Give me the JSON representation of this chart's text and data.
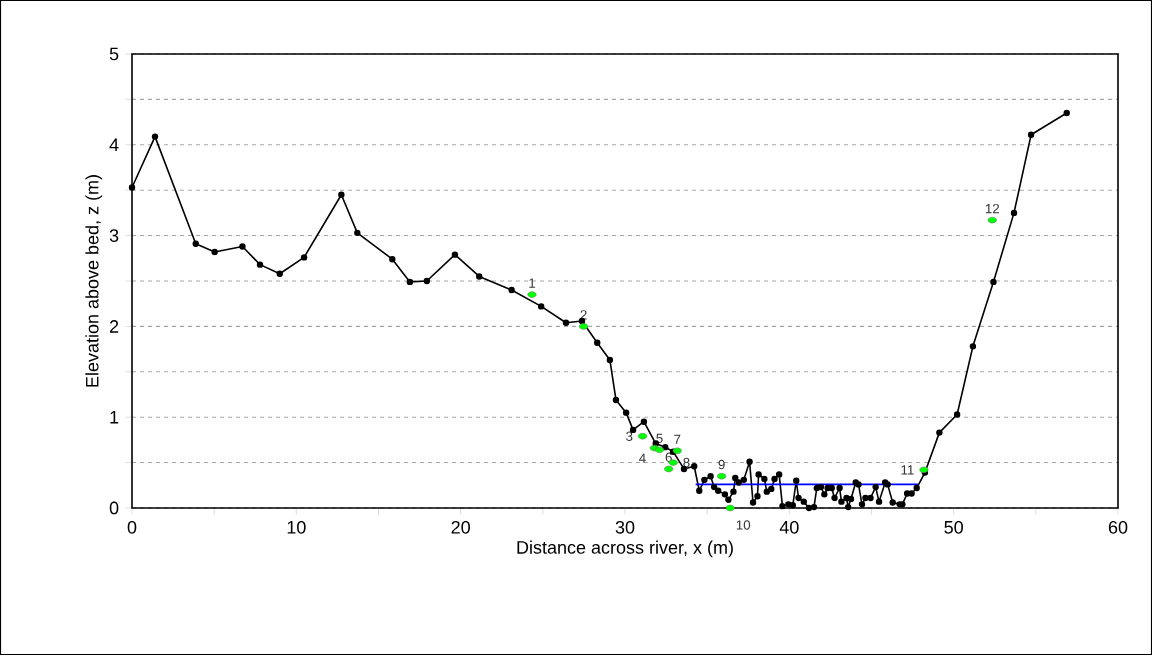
{
  "chart_data": {
    "type": "line",
    "xlabel": "Distance across river, x (m)",
    "ylabel": "Elevation above bed, z (m)",
    "xlim": [
      0,
      60
    ],
    "ylim": [
      0,
      5
    ],
    "xticks": [
      0,
      {
        "value": 5,
        "label": null
      },
      10,
      {
        "value": 15,
        "label": null
      },
      20,
      {
        "value": 25,
        "label": null
      },
      30,
      {
        "value": 35,
        "label": null
      },
      40,
      {
        "value": 45,
        "label": null
      },
      50,
      {
        "value": 55,
        "label": null
      },
      60
    ],
    "yticks": [
      0,
      {
        "value": 0.5,
        "label": null
      },
      1,
      {
        "value": 1.5,
        "label": null
      },
      2,
      {
        "value": 2.5,
        "label": null
      },
      3,
      {
        "value": 3.5,
        "label": null
      },
      4,
      {
        "value": 4.5,
        "label": null
      },
      5
    ],
    "grid": "y",
    "series": [
      {
        "color": "#000000",
        "marker": "circle",
        "x": [
          0,
          1.4,
          3.88,
          5.03,
          6.72,
          7.79,
          8.99,
          10.47,
          12.74,
          13.71,
          15.84,
          16.91,
          17.94,
          19.65,
          21.13,
          23.1,
          24.9,
          26.41,
          27.38,
          28.31,
          29.08,
          29.45,
          30.07,
          30.49,
          31.15,
          31.87,
          32.45,
          32.93,
          33.59,
          34.21,
          34.52,
          34.83,
          35.21,
          35.42,
          35.67,
          36.08,
          36.29,
          36.6,
          36.71,
          36.92,
          37.23,
          37.58,
          37.79,
          38.06,
          38.13,
          38.48,
          38.63,
          38.9,
          39.1,
          39.38,
          39.58,
          39.94,
          40.21,
          40.42,
          40.56,
          40.88,
          41.19,
          41.5,
          41.67,
          41.92,
          42.13,
          42.33,
          42.58,
          42.75,
          43.06,
          43.17,
          43.48,
          43.58,
          43.75,
          44.04,
          44.21,
          44.42,
          44.63,
          44.94,
          45.25,
          45.46,
          45.83,
          45.98,
          46.29,
          46.71,
          46.88,
          47.17,
          47.44,
          47.75,
          48.25,
          49.13,
          50.21,
          51.17,
          52.42,
          53.67,
          54.71,
          56.88
        ],
        "values": [
          3.53,
          4.09,
          2.91,
          2.82,
          2.88,
          2.68,
          2.58,
          2.76,
          3.45,
          3.03,
          2.74,
          2.49,
          2.5,
          2.79,
          2.55,
          2.4,
          2.22,
          2.04,
          2.06,
          1.82,
          1.63,
          1.19,
          1.05,
          0.86,
          0.95,
          0.71,
          0.67,
          0.62,
          0.43,
          0.46,
          0.19,
          0.31,
          0.35,
          0.23,
          0.19,
          0.15,
          0.09,
          0.18,
          0.33,
          0.28,
          0.31,
          0.51,
          0.06,
          0.13,
          0.37,
          0.32,
          0.18,
          0.21,
          0.32,
          0.37,
          0.02,
          0.04,
          0.03,
          0.3,
          0.11,
          0.07,
          0.0,
          0.01,
          0.22,
          0.23,
          0.15,
          0.22,
          0.22,
          0.11,
          0.22,
          0.07,
          0.11,
          0.01,
          0.1,
          0.28,
          0.26,
          0.04,
          0.11,
          0.11,
          0.23,
          0.07,
          0.28,
          0.26,
          0.06,
          0.04,
          0.04,
          0.16,
          0.16,
          0.22,
          0.39,
          0.83,
          1.03,
          1.78,
          2.49,
          3.25,
          4.11,
          4.35
        ]
      },
      {
        "type": "line",
        "color": "#0000ff",
        "marker": "none",
        "x": [
          34.3,
          47.85
        ],
        "values": [
          0.26,
          0.26
        ]
      },
      {
        "type": "scatter",
        "color": "#00ff00",
        "marker": "circle",
        "x": [
          24.34,
          27.48,
          31.07,
          31.79,
          32.1,
          32.66,
          33.18,
          32.93,
          35.88,
          36.4,
          48.19,
          52.35
        ],
        "values": [
          2.35,
          2.0,
          0.79,
          0.66,
          0.64,
          0.43,
          0.63,
          0.5,
          0.35,
          0.0,
          0.42,
          3.17
        ]
      }
    ],
    "annotations": [
      {
        "text": "1",
        "x": 24.34,
        "y": 2.35
      },
      {
        "text": "2",
        "x": 27.48,
        "y": 2.0
      },
      {
        "text": "3",
        "x": 31.07,
        "y": 0.79
      },
      {
        "text": "4",
        "x": 31.79,
        "y": 0.66
      },
      {
        "text": "5",
        "x": 32.1,
        "y": 0.64
      },
      {
        "text": "6",
        "x": 32.66,
        "y": 0.43
      },
      {
        "text": "7",
        "x": 33.18,
        "y": 0.63
      },
      {
        "text": "8",
        "x": 32.93,
        "y": 0.5
      },
      {
        "text": "9",
        "x": 35.88,
        "y": 0.35
      },
      {
        "text": "10",
        "x": 36.4,
        "y": 0.0
      },
      {
        "text": "11",
        "x": 48.19,
        "y": 0.42
      },
      {
        "text": "12",
        "x": 52.35,
        "y": 3.17
      }
    ]
  }
}
